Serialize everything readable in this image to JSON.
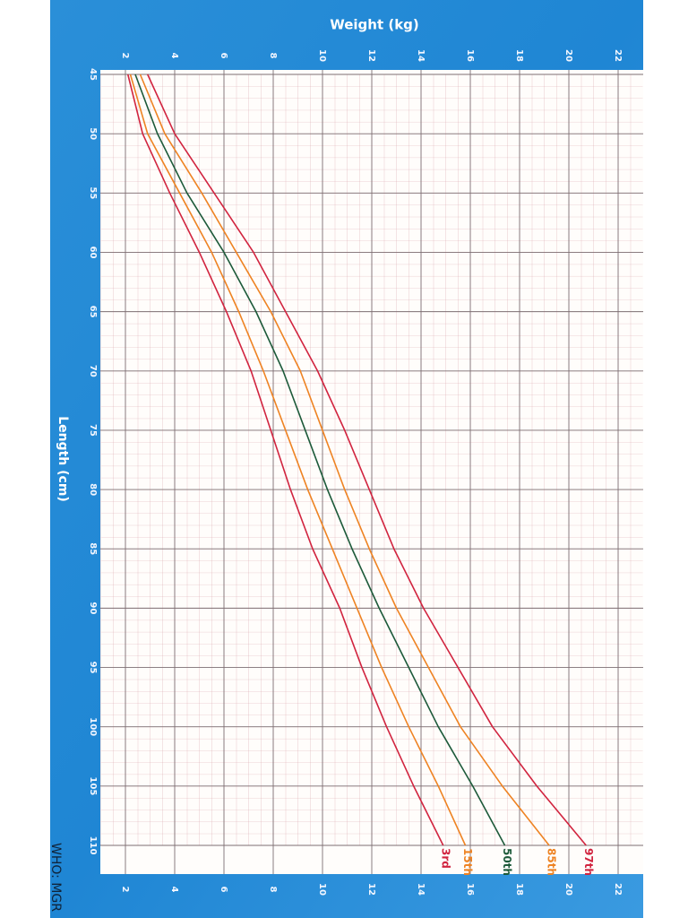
{
  "chart_data": {
    "type": "line",
    "title": "Weight (kg)",
    "x_label": "Length (cm)",
    "source": "WHO: MGR",
    "x": [
      45,
      50,
      55,
      60,
      65,
      70,
      75,
      80,
      85,
      90,
      95,
      100,
      105,
      110
    ],
    "xlim": [
      45,
      110
    ],
    "xticks": [
      45,
      50,
      55,
      60,
      65,
      70,
      75,
      80,
      85,
      90,
      95,
      100,
      105,
      110
    ],
    "ylim": [
      1,
      23
    ],
    "yticks": [
      2,
      4,
      6,
      8,
      10,
      12,
      14,
      16,
      18,
      20,
      22
    ],
    "grid": true,
    "series": [
      {
        "name": "97th",
        "color": "#d1243f",
        "values": [
          2.9,
          4.0,
          5.6,
          7.2,
          8.5,
          9.8,
          10.9,
          11.9,
          12.9,
          14.1,
          15.5,
          16.9,
          18.7,
          20.7
        ]
      },
      {
        "name": "85th",
        "color": "#ee8323",
        "values": [
          2.6,
          3.6,
          5.1,
          6.5,
          7.9,
          9.1,
          10.0,
          10.9,
          11.9,
          13.0,
          14.3,
          15.6,
          17.3,
          19.2
        ]
      },
      {
        "name": "50th",
        "color": "#1d5a3a",
        "values": [
          2.4,
          3.3,
          4.5,
          6.0,
          7.3,
          8.4,
          9.3,
          10.2,
          11.2,
          12.3,
          13.5,
          14.7,
          16.1,
          17.4
        ]
      },
      {
        "name": "15th",
        "color": "#ee8323",
        "values": [
          2.2,
          2.9,
          4.2,
          5.5,
          6.6,
          7.6,
          8.5,
          9.4,
          10.4,
          11.4,
          12.4,
          13.5,
          14.7,
          15.8
        ]
      },
      {
        "name": "3rd",
        "color": "#d1243f",
        "values": [
          2.1,
          2.7,
          3.8,
          5.0,
          6.1,
          7.1,
          7.9,
          8.7,
          9.6,
          10.7,
          11.6,
          12.6,
          13.7,
          14.9
        ]
      }
    ]
  }
}
